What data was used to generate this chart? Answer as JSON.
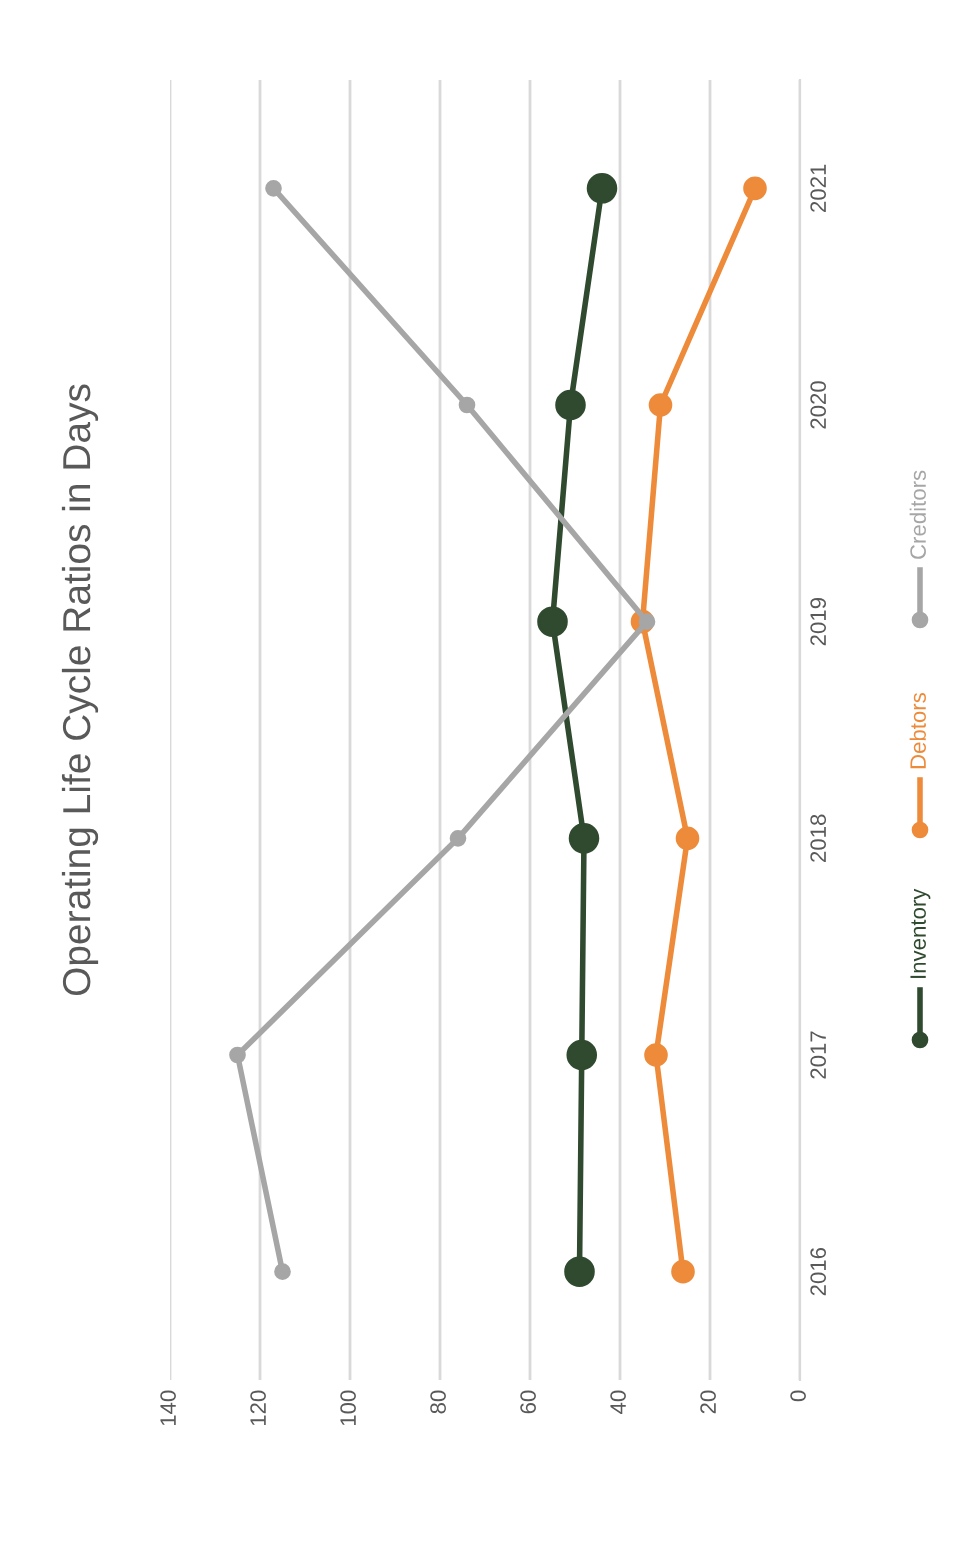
{
  "chart_data": {
    "type": "line",
    "title": "Operating Life Cycle Ratios in Days",
    "orientation": "horizontal",
    "categories": [
      "2021",
      "2020",
      "2019",
      "2018",
      "2017",
      "2016"
    ],
    "series": [
      {
        "name": "Inventory",
        "color": "#2f4a2f",
        "values": [
          44,
          51,
          55,
          48,
          48.5,
          49
        ]
      },
      {
        "name": "Debtors",
        "color": "#ed8b3a",
        "values": [
          10,
          31,
          35,
          25,
          32,
          26
        ]
      },
      {
        "name": "Creditors",
        "color": "#a6a6a6",
        "values": [
          117,
          74,
          34,
          76,
          125,
          115
        ]
      }
    ],
    "xlim": [
      140,
      0
    ],
    "xticks": [
      140,
      120,
      100,
      80,
      60,
      40,
      20,
      0
    ],
    "grid": "x",
    "legend": "right",
    "marker": "circle",
    "line_style": "solid"
  }
}
